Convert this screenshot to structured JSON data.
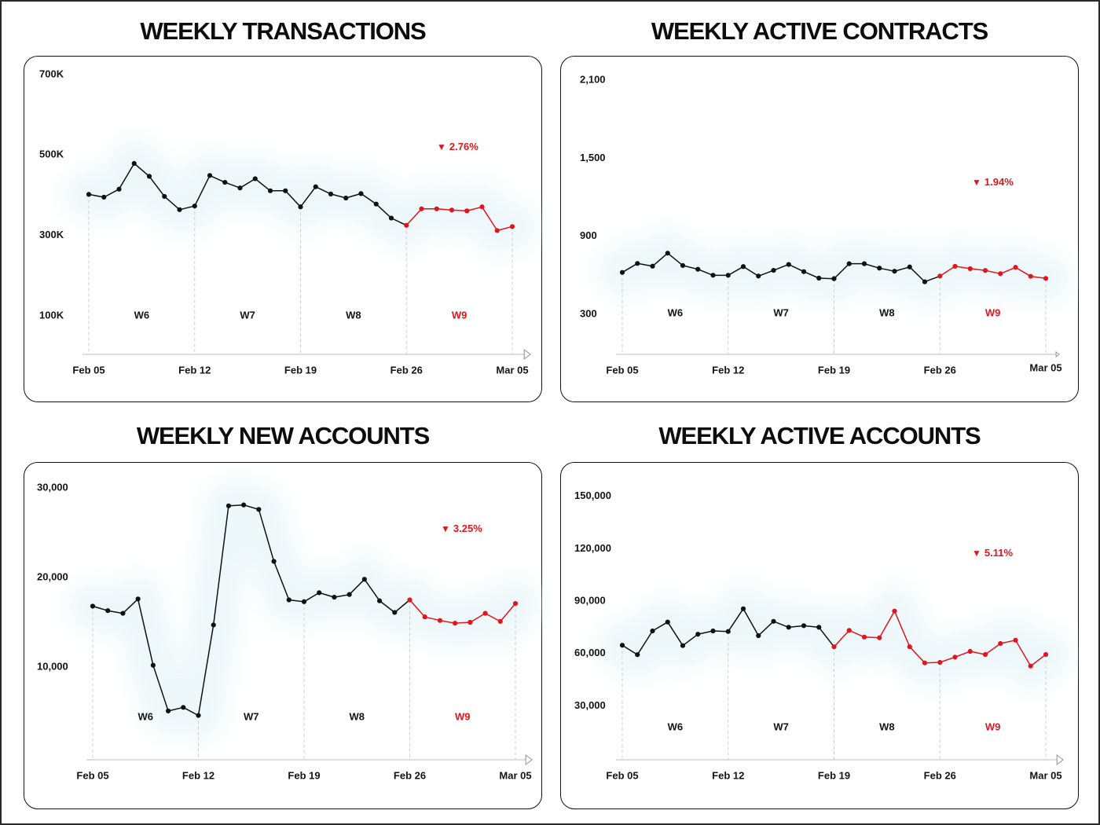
{
  "chart_data": [
    {
      "type": "line",
      "title": "WEEKLY TRANSACTIONS",
      "xlabel": "",
      "ylabel": "",
      "x": [
        "Feb 05",
        "Feb 06",
        "Feb 07",
        "Feb 08",
        "Feb 09",
        "Feb 10",
        "Feb 11",
        "Feb 12",
        "Feb 13",
        "Feb 14",
        "Feb 15",
        "Feb 16",
        "Feb 17",
        "Feb 18",
        "Feb 19",
        "Feb 20",
        "Feb 21",
        "Feb 22",
        "Feb 23",
        "Feb 24",
        "Feb 25",
        "Feb 26",
        "Feb 27",
        "Feb 28",
        "Mar 01",
        "Mar 02",
        "Mar 03",
        "Mar 04",
        "Mar 05"
      ],
      "xticks": [
        "Feb 05",
        "Feb 12",
        "Feb 19",
        "Feb 26",
        "Mar 05"
      ],
      "ylim": [
        0,
        700000
      ],
      "yticks": [
        100000,
        300000,
        500000,
        700000
      ],
      "ytick_labels": [
        "100K",
        "300K",
        "500K",
        "700K"
      ],
      "weeks": [
        "W6",
        "W7",
        "W8",
        "W9"
      ],
      "highlight_week": "W9",
      "highlight_from": "Feb 26",
      "series": [
        {
          "name": "Weekly Transactions",
          "values": [
            402000,
            395000,
            415000,
            479000,
            447000,
            397000,
            364000,
            373000,
            449000,
            432000,
            418000,
            441000,
            411000,
            411000,
            371000,
            421000,
            403000,
            393000,
            404000,
            378000,
            343000,
            325000,
            366000,
            366000,
            363000,
            361000,
            371000,
            312000,
            322000
          ]
        }
      ],
      "change": {
        "direction": "down",
        "symbol": "▼",
        "value": "2.76%"
      },
      "grid": false,
      "legend": "none",
      "colors": {
        "line": "#111111",
        "highlight": "#e0161e"
      }
    },
    {
      "type": "line",
      "title": "WEEKLY ACTIVE CONTRACTS",
      "xlabel": "",
      "ylabel": "",
      "x": [
        "Feb 05",
        "Feb 06",
        "Feb 07",
        "Feb 08",
        "Feb 09",
        "Feb 10",
        "Feb 11",
        "Feb 12",
        "Feb 13",
        "Feb 14",
        "Feb 15",
        "Feb 16",
        "Feb 17",
        "Feb 18",
        "Feb 19",
        "Feb 20",
        "Feb 21",
        "Feb 22",
        "Feb 23",
        "Feb 24",
        "Feb 25",
        "Feb 26",
        "Feb 27",
        "Feb 28",
        "Mar 01",
        "Mar 02",
        "Mar 03",
        "Mar 04",
        "Mar 05"
      ],
      "xticks": [
        "Feb 05",
        "Feb 12",
        "Feb 19",
        "Feb 26",
        "Mar 05"
      ],
      "ylim": [
        0,
        2100
      ],
      "yticks": [
        300,
        900,
        1500,
        2100
      ],
      "ytick_labels": [
        "300",
        "900",
        "1,500",
        "2,100"
      ],
      "weeks": [
        "W6",
        "W7",
        "W8",
        "W9"
      ],
      "highlight_week": "W9",
      "highlight_from": "Feb 26",
      "series": [
        {
          "name": "Weekly Active Contracts",
          "values": [
            622,
            691,
            670,
            770,
            675,
            646,
            600,
            600,
            667,
            594,
            638,
            683,
            628,
            578,
            574,
            689,
            689,
            655,
            631,
            664,
            550,
            594,
            669,
            651,
            637,
            612,
            661,
            592,
            576
          ]
        }
      ],
      "change": {
        "direction": "down",
        "symbol": "▼",
        "value": "1.94%"
      },
      "grid": false,
      "legend": "none",
      "colors": {
        "line": "#111111",
        "highlight": "#e0161e"
      }
    },
    {
      "type": "line",
      "title": "WEEKLY NEW ACCOUNTS",
      "xlabel": "",
      "ylabel": "",
      "x": [
        "Feb 05",
        "Feb 06",
        "Feb 07",
        "Feb 08",
        "Feb 09",
        "Feb 10",
        "Feb 11",
        "Feb 12",
        "Feb 13",
        "Feb 14",
        "Feb 15",
        "Feb 16",
        "Feb 17",
        "Feb 18",
        "Feb 19",
        "Feb 20",
        "Feb 21",
        "Feb 22",
        "Feb 23",
        "Feb 24",
        "Feb 25",
        "Feb 26",
        "Feb 27",
        "Feb 28",
        "Mar 01",
        "Mar 02",
        "Mar 03",
        "Mar 04",
        "Mar 05"
      ],
      "xticks": [
        "Feb 05",
        "Feb 12",
        "Feb 19",
        "Feb 26",
        "Mar 05"
      ],
      "ylim": [
        0,
        30000
      ],
      "yticks": [
        10000,
        20000,
        30000
      ],
      "ytick_labels": [
        "10,000",
        "20,000",
        "30,000"
      ],
      "weeks": [
        "W6",
        "W7",
        "W8",
        "W9"
      ],
      "highlight_week": "W9",
      "highlight_from": "Feb 26",
      "series": [
        {
          "name": "Weekly New Accounts",
          "values": [
            16800,
            16300,
            16000,
            17600,
            10200,
            5100,
            5500,
            4600,
            14700,
            28000,
            28100,
            27600,
            21800,
            17500,
            17300,
            18300,
            17800,
            18100,
            19800,
            17400,
            16100,
            17500,
            15600,
            15200,
            14900,
            15000,
            16000,
            15100,
            17100
          ]
        }
      ],
      "change": {
        "direction": "down",
        "symbol": "▼",
        "value": "3.25%"
      },
      "grid": false,
      "legend": "none",
      "colors": {
        "line": "#111111",
        "highlight": "#e0161e"
      }
    },
    {
      "type": "line",
      "title": "WEEKLY ACTIVE ACCOUNTS",
      "xlabel": "",
      "ylabel": "",
      "x": [
        "Feb 05",
        "Feb 06",
        "Feb 07",
        "Feb 08",
        "Feb 09",
        "Feb 10",
        "Feb 11",
        "Feb 12",
        "Feb 13",
        "Feb 14",
        "Feb 15",
        "Feb 16",
        "Feb 17",
        "Feb 18",
        "Feb 19",
        "Feb 20",
        "Feb 21",
        "Feb 22",
        "Feb 23",
        "Feb 24",
        "Feb 25",
        "Feb 26",
        "Feb 27",
        "Feb 28",
        "Mar 01",
        "Mar 02",
        "Mar 03",
        "Mar 04",
        "Mar 05"
      ],
      "xticks": [
        "Feb 05",
        "Feb 12",
        "Feb 19",
        "Feb 26",
        "Mar 05"
      ],
      "ylim": [
        0,
        150000
      ],
      "yticks": [
        30000,
        60000,
        90000,
        120000,
        150000
      ],
      "ytick_labels": [
        "30,000",
        "60,000",
        "90,000",
        "120,000",
        "150,000"
      ],
      "weeks": [
        "W6",
        "W7",
        "W8",
        "W9"
      ],
      "highlight_week": "W9",
      "highlight_from": "Feb 19",
      "series": [
        {
          "name": "Weekly Active Accounts",
          "values": [
            64700,
            59300,
            72900,
            78000,
            64500,
            71000,
            72900,
            72600,
            85600,
            70200,
            78400,
            75000,
            75900,
            75000,
            63800,
            73200,
            69400,
            69000,
            84300,
            63800,
            54600,
            54900,
            57900,
            61200,
            59400,
            65700,
            67600,
            52800,
            59400
          ]
        }
      ],
      "change": {
        "direction": "down",
        "symbol": "▼",
        "value": "5.11%"
      },
      "grid": false,
      "legend": "none",
      "colors": {
        "line": "#111111",
        "highlight": "#e0161e"
      }
    }
  ]
}
